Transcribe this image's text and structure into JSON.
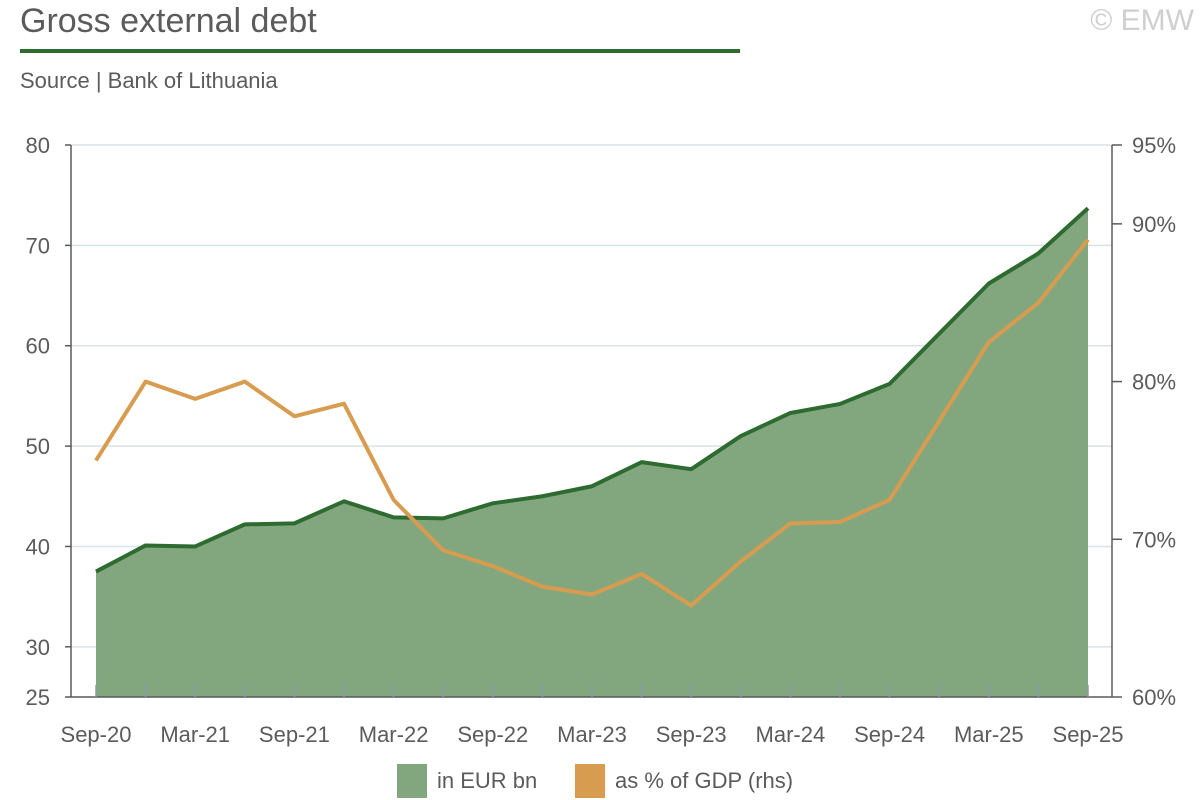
{
  "header": {
    "title": "Gross external debt",
    "source": "Source | Bank of Lithuania",
    "watermark": "© EMW"
  },
  "colors": {
    "area_fill": "#82a77f",
    "area_line": "#2e6b30",
    "pct_line": "#d79c4f",
    "title_rule": "#2e6b30",
    "grid": "#d6e4ea",
    "axis": "#5a5a5a"
  },
  "legend": {
    "eur_label": "in EUR bn",
    "pct_label": "as % of GDP (rhs)"
  },
  "chart_data": {
    "type": "area",
    "x": [
      "Sep-20",
      "Dec-20",
      "Mar-21",
      "Jun-21",
      "Sep-21",
      "Dec-21",
      "Mar-22",
      "Jun-22",
      "Sep-22",
      "Dec-22",
      "Mar-23",
      "Jun-23",
      "Sep-23",
      "Dec-23",
      "Mar-24",
      "Jun-24",
      "Sep-24",
      "Dec-24",
      "Mar-25",
      "Jun-25",
      "Sep-25"
    ],
    "x_tick_labels": [
      "Sep-20",
      "Mar-21",
      "Sep-21",
      "Mar-22",
      "Sep-22",
      "Mar-23",
      "Sep-23",
      "Mar-24",
      "Sep-24",
      "Mar-25",
      "Sep-25"
    ],
    "series": [
      {
        "name": "in EUR bn",
        "axis": "left",
        "kind": "area",
        "values": [
          37.5,
          40.1,
          40.0,
          42.2,
          42.3,
          44.5,
          42.9,
          42.8,
          44.3,
          45.0,
          46.0,
          48.4,
          47.7,
          51.0,
          53.3,
          54.2,
          56.2,
          61.2,
          66.2,
          69.2,
          73.7
        ]
      },
      {
        "name": "as % of GDP (rhs)",
        "axis": "right",
        "kind": "line",
        "values": [
          75.0,
          80.0,
          78.9,
          80.0,
          77.8,
          78.6,
          72.5,
          69.3,
          68.3,
          67.0,
          66.5,
          67.8,
          65.8,
          68.6,
          71.0,
          71.1,
          72.5,
          77.5,
          82.5,
          85.0,
          89.0
        ]
      }
    ],
    "y_left": {
      "ylim": [
        25,
        80
      ],
      "ticks": [
        25,
        30,
        40,
        50,
        60,
        70,
        80
      ],
      "tick_labels": [
        "25",
        "30",
        "40",
        "50",
        "60",
        "70",
        "80"
      ]
    },
    "y_right": {
      "ylim": [
        60,
        95
      ],
      "ticks": [
        60,
        70,
        80,
        90,
        95
      ],
      "tick_labels": [
        "60%",
        "70%",
        "80%",
        "90%",
        "95%"
      ]
    },
    "grid": true,
    "legend_position": "bottom"
  }
}
